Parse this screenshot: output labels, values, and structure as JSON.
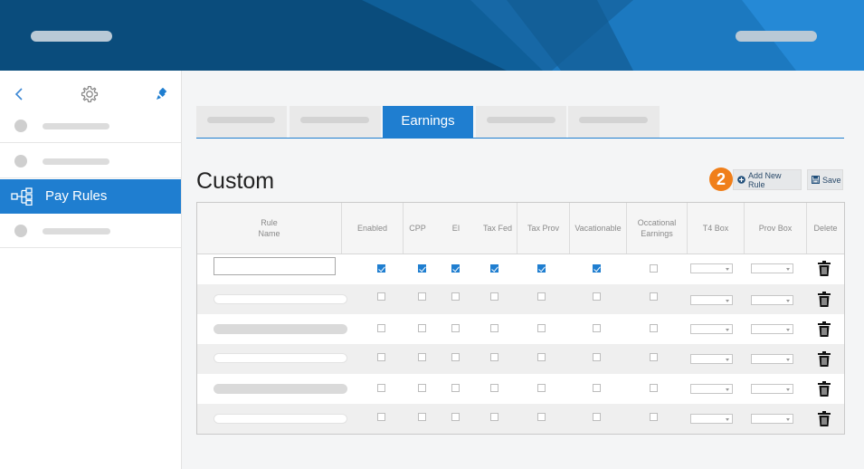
{
  "colors": {
    "brand_dark": "#0a4c7c",
    "accent_blue": "#1f7ed0",
    "badge_orange": "#f07f1a"
  },
  "sidebar": {
    "tools": {
      "back": "chevron-left-icon",
      "settings": "gear-icon",
      "pin": "pin-icon"
    },
    "active_item": {
      "label": "Pay Rules",
      "icon": "flow-diagram-icon"
    }
  },
  "tabs": {
    "active_label": "Earnings"
  },
  "main": {
    "title": "Custom"
  },
  "step_badge": "2",
  "toolbar": {
    "add_label": "Add New Rule",
    "save_label": "Save"
  },
  "table": {
    "headers": {
      "rule_name": [
        "Rule",
        "Name"
      ],
      "enabled": "Enabled",
      "cpp": "CPP",
      "ei": "EI",
      "tax_fed": "Tax Fed",
      "tax_prov": "Tax Prov",
      "vacationable": "Vacationable",
      "occasional": [
        "Occational",
        "Earnings"
      ],
      "t4_box": "T4 Box",
      "prov_box": "Prov Box",
      "delete": "Delete"
    },
    "first_row_checked": {
      "enabled": true,
      "cpp": true,
      "ei": true,
      "tax_fed": true,
      "tax_prov": true,
      "vacationable": true,
      "occasional": false
    }
  }
}
